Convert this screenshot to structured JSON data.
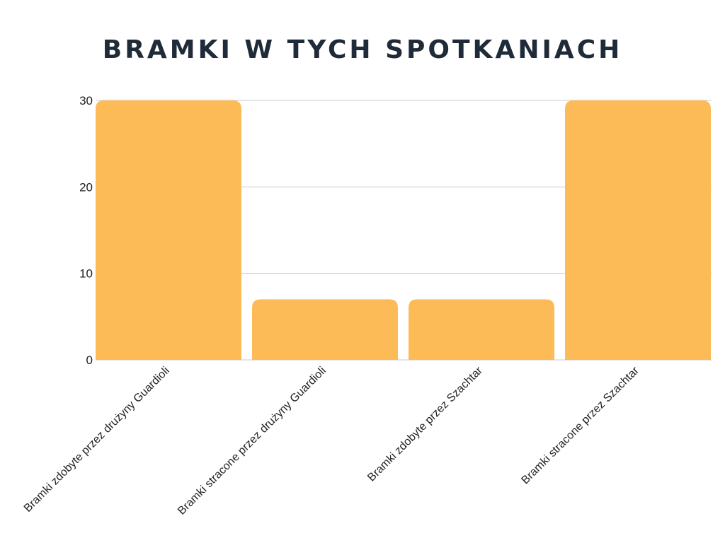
{
  "chart_data": {
    "type": "bar",
    "title": "BRAMKI W TYCH SPOTKANIACH",
    "categories": [
      "Bramki zdobyte przez drużyny Guardioli",
      "Bramki stracone przez drużyny Guardioli",
      "Bramki zdobyte przez Szachtar",
      "Bramki stracone przez Szachtar"
    ],
    "values": [
      30,
      7,
      7,
      30
    ],
    "xlabel": "",
    "ylabel": "",
    "ylim": [
      0,
      30
    ],
    "yticks": [
      0,
      10,
      20,
      30
    ],
    "grid": true,
    "legend": "none",
    "bar_color": "#fdbb58",
    "grid_color": "#cccccc",
    "title_color": "#1f2b38"
  }
}
